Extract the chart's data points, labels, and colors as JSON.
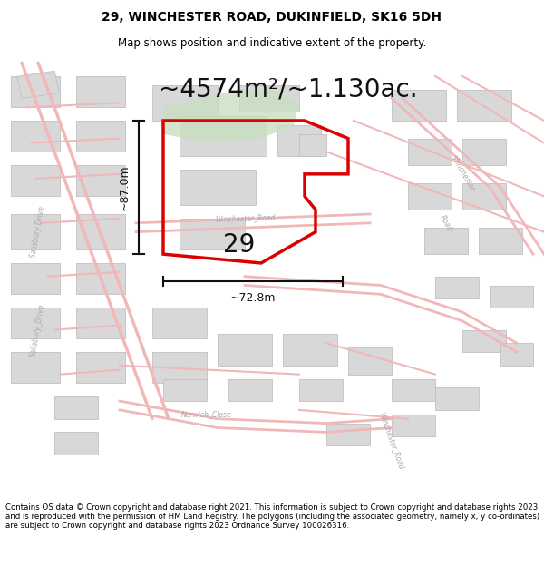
{
  "title_line1": "29, WINCHESTER ROAD, DUKINFIELD, SK16 5DH",
  "title_line2": "Map shows position and indicative extent of the property.",
  "area_text": "~4574m²/~1.130ac.",
  "width_label": "~72.8m",
  "height_label": "~87.0m",
  "number_label": "29",
  "footer_text": "Contains OS data © Crown copyright and database right 2021. This information is subject to Crown copyright and database rights 2023 and is reproduced with the permission of HM Land Registry. The polygons (including the associated geometry, namely x, y co-ordinates) are subject to Crown copyright and database rights 2023 Ordnance Survey 100026316.",
  "bg_color": "#ffffff",
  "map_bg": "#ffffff",
  "road_color": "#f0b8b8",
  "road_fill": "#fde8e8",
  "building_color": "#d8d8d8",
  "building_edge": "#c0c0c0",
  "highlight_color": "#c8dfc0",
  "plot_fill": "none",
  "plot_border": "#dd0000",
  "border_linewidth": 2.5,
  "road_linewidth": 1.0,
  "arrow_color": "#111111",
  "title_fontsize": 10,
  "subtitle_fontsize": 8.5,
  "area_fontsize": 20,
  "label_fontsize": 9,
  "number_fontsize": 20,
  "footer_fontsize": 6.2,
  "road_label_color": "#aaaaaa",
  "road_label_size": 5.5
}
